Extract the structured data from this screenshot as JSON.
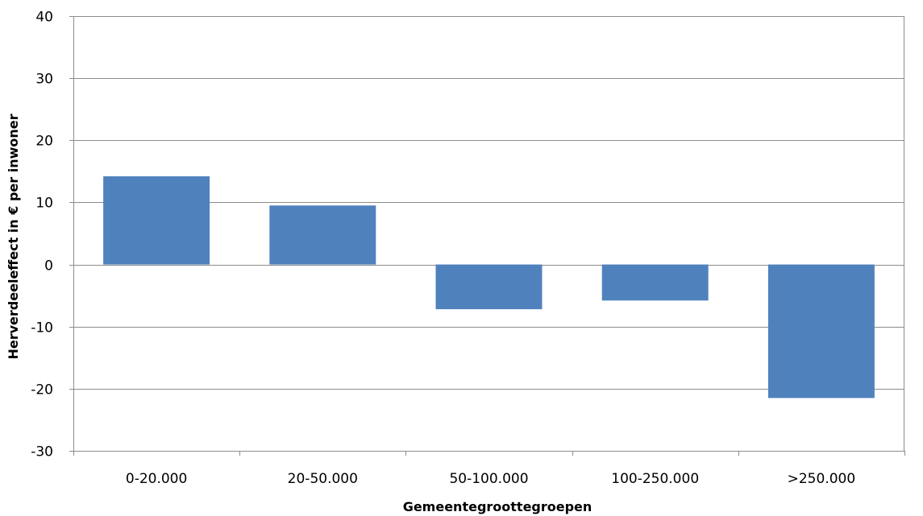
{
  "chart_data": {
    "type": "bar",
    "categories": [
      "0-20.000",
      "20-50.000",
      "50-100.000",
      "100-250.000",
      ">250.000"
    ],
    "values": [
      14.2,
      9.5,
      -7.2,
      -5.8,
      -21.5
    ],
    "xlabel": "Gemeentegroottegroepen",
    "ylabel": "Herverdeeleffect in € per inwoner",
    "ylim": [
      -30,
      40
    ],
    "yticks": [
      40,
      30,
      20,
      10,
      0,
      -10,
      -20,
      -30
    ],
    "grid": true,
    "bar_color": "#4f81bd",
    "legend": "none"
  }
}
